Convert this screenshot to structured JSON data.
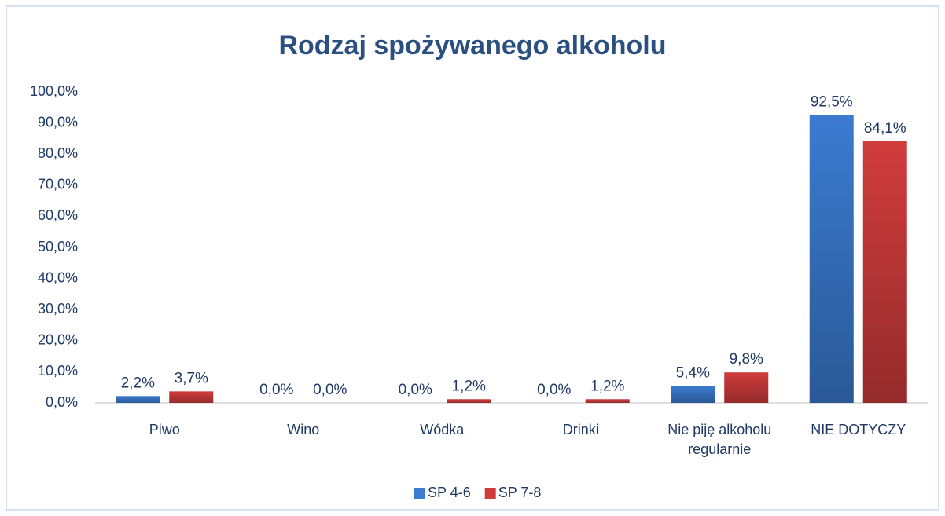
{
  "chart_data": {
    "type": "bar",
    "title": "Rodzaj spożywanego alkoholu",
    "categories": [
      "Piwo",
      "Wino",
      "Wódka",
      "Drinki",
      "Nie piję alkoholu regularnie",
      "NIE DOTYCZY"
    ],
    "series": [
      {
        "name": "SP 4-6",
        "color": "#3b7bd0",
        "values": [
          2.2,
          0.0,
          0.0,
          0.0,
          5.4,
          92.5
        ],
        "value_labels": [
          "2,2%",
          "0,0%",
          "0,0%",
          "0,0%",
          "5,4%",
          "92,5%"
        ]
      },
      {
        "name": "SP 7-8",
        "color": "#d03c3c",
        "values": [
          3.7,
          0.0,
          1.2,
          1.2,
          9.8,
          84.1
        ],
        "value_labels": [
          "3,7%",
          "0,0%",
          "1,2%",
          "1,2%",
          "9,8%",
          "84,1%"
        ]
      }
    ],
    "ylim": [
      0,
      100
    ],
    "yticks": [
      {
        "value": 0,
        "label": "0,0%"
      },
      {
        "value": 10,
        "label": "10,0%"
      },
      {
        "value": 20,
        "label": "20,0%"
      },
      {
        "value": 30,
        "label": "30,0%"
      },
      {
        "value": 40,
        "label": "40,0%"
      },
      {
        "value": 50,
        "label": "50,0%"
      },
      {
        "value": 60,
        "label": "60,0%"
      },
      {
        "value": 70,
        "label": "70,0%"
      },
      {
        "value": 80,
        "label": "80,0%"
      },
      {
        "value": 90,
        "label": "90,0%"
      },
      {
        "value": 100,
        "label": "100,0%"
      }
    ],
    "grid": false,
    "legend": "bottom"
  }
}
